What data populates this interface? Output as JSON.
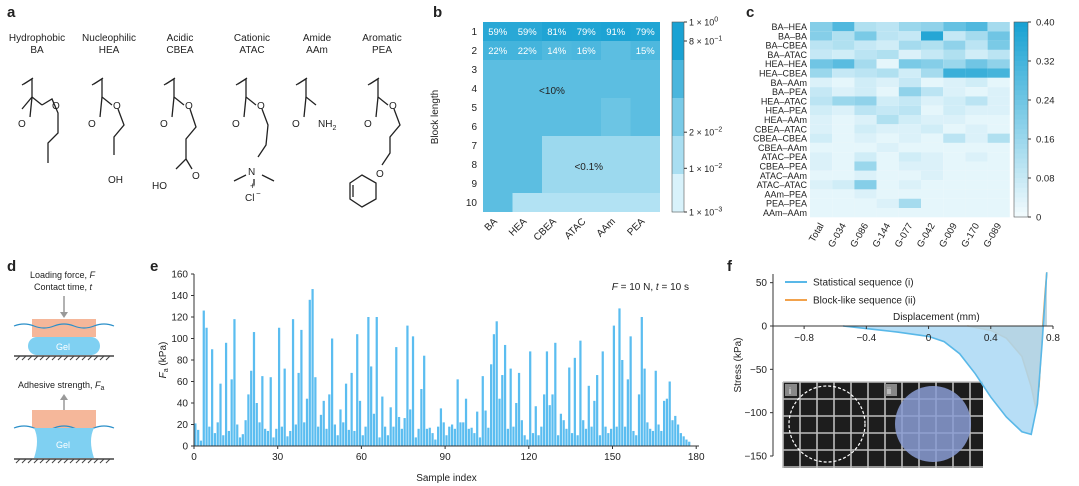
{
  "panel_labels": [
    "a",
    "b",
    "c",
    "d",
    "e",
    "f"
  ],
  "panel_a": {
    "monomers": [
      {
        "category": "Hydrophobic",
        "name": "BA"
      },
      {
        "category": "Nucleophilic",
        "name": "HEA"
      },
      {
        "category": "Acidic",
        "name": "CBEA"
      },
      {
        "category": "Cationic",
        "name": "ATAC"
      },
      {
        "category": "Amide",
        "name": "AAm"
      },
      {
        "category": "Aromatic",
        "name": "PEA"
      }
    ],
    "atoms": {
      "o": "O",
      "oh": "OH",
      "ho": "HO",
      "n": "N",
      "nh2": "NH",
      "nh2_sub": "2",
      "plus": "+",
      "cl": "Cl",
      "cl_sup": "−"
    }
  },
  "chart_data": [
    {
      "type": "heatmap",
      "panel": "b",
      "ylabel": "Block length",
      "rows": [
        "1",
        "2",
        "3",
        "4",
        "5",
        "6",
        "7",
        "8",
        "9",
        "10"
      ],
      "cols": [
        "BA",
        "HEA",
        "CBEA",
        "ATAC",
        "AAm",
        "PEA"
      ],
      "values": [
        [
          0.59,
          0.59,
          0.81,
          0.79,
          0.91,
          0.79
        ],
        [
          0.22,
          0.22,
          0.14,
          0.16,
          0.09,
          0.15
        ],
        [
          0.09,
          0.09,
          0.09,
          0.09,
          0.09,
          0.09
        ],
        [
          0.09,
          0.09,
          0.09,
          0.09,
          0.09,
          0.09
        ],
        [
          0.09,
          0.09,
          0.09,
          0.09,
          0.05,
          0.09
        ],
        [
          0.09,
          0.09,
          0.09,
          0.09,
          0.05,
          0.09
        ],
        [
          0.09,
          0.09,
          0.009,
          0.009,
          0.009,
          0.009
        ],
        [
          0.09,
          0.09,
          0.009,
          0.009,
          0.009,
          0.009
        ],
        [
          0.09,
          0.09,
          0.009,
          0.009,
          0.009,
          0.009
        ],
        [
          0.09,
          0.004,
          0.004,
          0.004,
          0.004,
          0.004
        ]
      ],
      "cell_labels": [
        [
          "59%",
          "59%",
          "81%",
          "79%",
          "91%",
          "79%"
        ],
        [
          "22%",
          "22%",
          "14%",
          "16%",
          "",
          "15%"
        ]
      ],
      "annotations": [
        "<10%",
        "<0.1%"
      ],
      "colorbar": {
        "scale": "log",
        "ticks": [
          "1 × 10",
          "8 × 10",
          "2 × 10",
          "1 × 10",
          "1 × 10"
        ],
        "tick_exps": [
          "0",
          "−1",
          "−2",
          "−2",
          "−3"
        ]
      }
    },
    {
      "type": "heatmap",
      "panel": "c",
      "rows": [
        "BA–HEA",
        "BA–BA",
        "BA–CBEA",
        "BA–ATAC",
        "HEA–HEA",
        "HEA–CBEA",
        "BA–AAm",
        "BA–PEA",
        "HEA–ATAC",
        "HEA–PEA",
        "HEA–AAm",
        "CBEA–ATAC",
        "CBEA–CBEA",
        "CBEA–AAm",
        "ATAC–PEA",
        "CBEA–PEA",
        "ATAC–AAm",
        "ATAC–ATAC",
        "AAm–PEA",
        "PEA–PEA",
        "AAm–AAm"
      ],
      "cols": [
        "Total",
        "G-034",
        "G-086",
        "G-144",
        "G-077",
        "G-042",
        "G-009",
        "G-170",
        "G-089"
      ],
      "values": [
        [
          0.2,
          0.3,
          0.12,
          0.1,
          0.16,
          0.18,
          0.26,
          0.3,
          0.14
        ],
        [
          0.2,
          0.12,
          0.22,
          0.1,
          0.08,
          0.38,
          0.08,
          0.14,
          0.24
        ],
        [
          0.1,
          0.12,
          0.08,
          0.06,
          0.14,
          0.12,
          0.18,
          0.1,
          0.22
        ],
        [
          0.08,
          0.06,
          0.1,
          0.12,
          0.04,
          0.08,
          0.12,
          0.06,
          0.1
        ],
        [
          0.24,
          0.28,
          0.14,
          0.02,
          0.22,
          0.2,
          0.16,
          0.24,
          0.18
        ],
        [
          0.16,
          0.08,
          0.1,
          0.12,
          0.06,
          0.14,
          0.34,
          0.34,
          0.32
        ],
        [
          0.04,
          0.02,
          0.06,
          0.04,
          0.08,
          0.02,
          0.04,
          0.06,
          0.02
        ],
        [
          0.08,
          0.04,
          0.06,
          0.02,
          0.18,
          0.1,
          0.04,
          0.02,
          0.04
        ],
        [
          0.1,
          0.16,
          0.18,
          0.06,
          0.08,
          0.04,
          0.06,
          0.1,
          0.04
        ],
        [
          0.06,
          0.04,
          0.1,
          0.08,
          0.1,
          0.02,
          0.06,
          0.04,
          0.04
        ],
        [
          0.04,
          0.02,
          0.04,
          0.12,
          0.06,
          0.04,
          0.04,
          0.02,
          0.02
        ],
        [
          0.04,
          0.02,
          0.06,
          0.04,
          0.04,
          0.06,
          0.02,
          0.04,
          0.02
        ],
        [
          0.06,
          0.02,
          0.04,
          0.02,
          0.04,
          0.02,
          0.1,
          0.04,
          0.12
        ],
        [
          0.02,
          0.02,
          0.02,
          0.04,
          0.02,
          0.02,
          0.02,
          0.02,
          0.02
        ],
        [
          0.04,
          0.02,
          0.06,
          0.02,
          0.06,
          0.04,
          0.02,
          0.04,
          0.02
        ],
        [
          0.04,
          0.02,
          0.16,
          0.02,
          0.04,
          0.04,
          0.02,
          0.02,
          0.02
        ],
        [
          0.02,
          0.02,
          0.04,
          0.02,
          0.02,
          0.04,
          0.02,
          0.02,
          0.02
        ],
        [
          0.04,
          0.06,
          0.2,
          0.02,
          0.04,
          0.02,
          0.02,
          0.02,
          0.02
        ],
        [
          0.02,
          0.02,
          0.04,
          0.02,
          0.02,
          0.02,
          0.02,
          0.02,
          0.02
        ],
        [
          0.02,
          0.02,
          0.02,
          0.04,
          0.14,
          0.02,
          0.02,
          0.02,
          0.02
        ],
        [
          0.02,
          0.02,
          0.02,
          0.02,
          0.02,
          0.02,
          0.02,
          0.02,
          0.02
        ]
      ],
      "colorbar": {
        "min": 0,
        "max": 0.4,
        "ticks": [
          "0.40",
          "0.32",
          "0.24",
          "0.16",
          "0.08",
          "0"
        ]
      }
    },
    {
      "type": "bar",
      "panel": "e",
      "xlabel": "Sample index",
      "ylabel": "F",
      "ylabel_sub": "a",
      "ylabel_unit": " (kPa)",
      "annotation": {
        "f": "F",
        "f_val": " = 10 N, ",
        "t": "t",
        "t_val": " = 10 s"
      },
      "xlim": [
        0,
        181
      ],
      "ylim": [
        0,
        160
      ],
      "xticks": [
        0,
        30,
        60,
        90,
        120,
        150,
        180
      ],
      "yticks": [
        0,
        20,
        40,
        60,
        80,
        100,
        120,
        140,
        160
      ],
      "values": [
        21,
        15,
        5,
        126,
        110,
        18,
        90,
        12,
        22,
        58,
        10,
        96,
        14,
        62,
        118,
        20,
        8,
        11,
        24,
        48,
        70,
        106,
        40,
        22,
        65,
        16,
        14,
        64,
        8,
        16,
        110,
        18,
        72,
        9,
        14,
        118,
        20,
        68,
        108,
        22,
        44,
        136,
        146,
        64,
        18,
        29,
        42,
        16,
        48,
        100,
        20,
        10,
        34,
        22,
        58,
        15,
        68,
        14,
        104,
        42,
        10,
        18,
        120,
        74,
        30,
        120,
        8,
        46,
        18,
        10,
        36,
        18,
        92,
        27,
        16,
        26,
        112,
        34,
        102,
        8,
        16,
        53,
        84,
        16,
        17,
        12,
        6,
        18,
        35,
        22,
        10,
        18,
        20,
        16,
        62,
        22,
        22,
        44,
        16,
        17,
        12,
        32,
        8,
        65,
        33,
        17,
        76,
        104,
        116,
        44,
        66,
        94,
        16,
        72,
        18,
        40,
        68,
        24,
        10,
        6,
        88,
        12,
        37,
        10,
        18,
        48,
        88,
        38,
        48,
        96,
        10,
        30,
        24,
        16,
        73,
        12,
        82,
        10,
        98,
        24,
        16,
        56,
        18,
        42,
        66,
        10,
        88,
        18,
        12,
        16,
        112,
        18,
        128,
        80,
        18,
        62,
        102,
        14,
        10,
        48,
        120,
        72,
        22,
        16,
        14,
        70,
        20,
        14,
        42,
        44,
        60,
        24,
        28,
        20,
        12,
        9,
        6,
        4
      ]
    },
    {
      "type": "area",
      "panel": "f",
      "xlabel": "Displacement (mm)",
      "ylabel": "Stress (kPa)",
      "xlim": [
        -1.0,
        0.8
      ],
      "ylim": [
        -150,
        60
      ],
      "xticks": [
        "−0.8",
        "−0.4",
        "0",
        "0.4",
        "0.8"
      ],
      "xtick_values": [
        -0.8,
        -0.4,
        0,
        0.4,
        0.8
      ],
      "yticks": [
        "50",
        "0",
        "−50",
        "−100",
        "−150"
      ],
      "ytick_values": [
        50,
        0,
        -50,
        -100,
        -150
      ],
      "series": [
        {
          "name": "Statistical sequence (i)",
          "color": "#59b8e8",
          "fill": "#aad8f5",
          "x": [
            -0.55,
            -0.4,
            -0.2,
            0,
            0.1,
            0.2,
            0.3,
            0.4,
            0.5,
            0.6,
            0.66,
            0.7,
            0.73,
            0.75,
            0.76
          ],
          "y": [
            0,
            -3,
            -7,
            -12,
            -18,
            -32,
            -55,
            -82,
            -105,
            -122,
            -125,
            -90,
            -20,
            35,
            62
          ]
        },
        {
          "name": "Block-like sequence (ii)",
          "color": "#f2a24c",
          "fill": "#f2b878",
          "x": [
            0.25,
            0.4,
            0.5,
            0.6,
            0.66,
            0.69,
            0.71,
            0.73,
            0.75,
            0.76
          ],
          "y": [
            0,
            -5,
            -14,
            -35,
            -70,
            -95,
            -70,
            -10,
            40,
            62
          ]
        }
      ],
      "inset_labels": [
        "i",
        "ii"
      ]
    }
  ],
  "panel_d": {
    "top_line1": "Loading force, ",
    "top_line1_var": "F",
    "top_line2": "Contact time, ",
    "top_line2_var": "t",
    "bottom_line": "Adhesive strength, ",
    "bottom_var": "F",
    "bottom_sub": "a",
    "gel_label": "Gel"
  }
}
